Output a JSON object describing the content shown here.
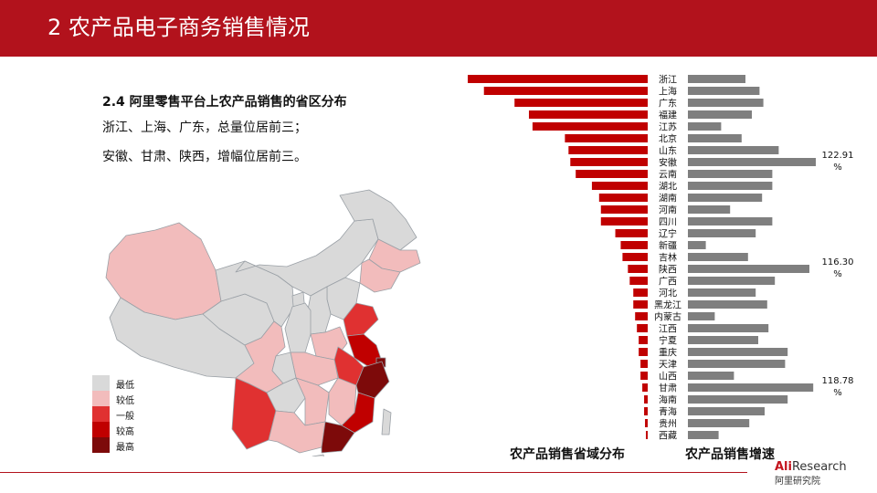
{
  "header": {
    "title": "2 农产品电子商务销售情况"
  },
  "text": {
    "subtitle": "2.4 阿里零售平台上农产品销售的省区分布",
    "line1": "浙江、上海、广东，总量位居前三；",
    "line2": "安徽、甘肃、陕西，增幅位居前三。"
  },
  "legend": [
    {
      "label": "最低",
      "color": "#d9d9d9"
    },
    {
      "label": "较低",
      "color": "#f2bcbc"
    },
    {
      "label": "一般",
      "color": "#e03131"
    },
    {
      "label": "较高",
      "color": "#c00000"
    },
    {
      "label": "最高",
      "color": "#7d0a0a"
    }
  ],
  "map": {
    "regions": [
      {
        "name": "新疆",
        "level": 1
      },
      {
        "name": "西藏",
        "level": 0
      },
      {
        "name": "青海",
        "level": 0
      },
      {
        "name": "甘肃",
        "level": 0
      },
      {
        "name": "内蒙古",
        "level": 0
      },
      {
        "name": "黑龙江",
        "level": 0
      },
      {
        "name": "吉林",
        "level": 1
      },
      {
        "name": "辽宁",
        "level": 1
      },
      {
        "name": "北京",
        "level": 2
      },
      {
        "name": "河北",
        "level": 0
      },
      {
        "name": "山西",
        "level": 0
      },
      {
        "name": "宁夏",
        "level": 0
      },
      {
        "name": "陕西",
        "level": 0
      },
      {
        "name": "河南",
        "level": 1
      },
      {
        "name": "山东",
        "level": 2
      },
      {
        "name": "江苏",
        "level": 3
      },
      {
        "name": "上海",
        "level": 4
      },
      {
        "name": "安徽",
        "level": 2
      },
      {
        "name": "湖北",
        "level": 1
      },
      {
        "name": "四川",
        "level": 1
      },
      {
        "name": "重庆",
        "level": 0
      },
      {
        "name": "贵州",
        "level": 0
      },
      {
        "name": "湖南",
        "level": 1
      },
      {
        "name": "江西",
        "level": 1
      },
      {
        "name": "浙江",
        "level": 4
      },
      {
        "name": "福建",
        "level": 3
      },
      {
        "name": "云南",
        "level": 2
      },
      {
        "name": "广西",
        "level": 1
      },
      {
        "name": "广东",
        "level": 4
      },
      {
        "name": "海南",
        "level": 0
      },
      {
        "name": "台湾",
        "level": 0
      }
    ]
  },
  "chart_data": {
    "type": "bar",
    "categories": [
      "浙江",
      "上海",
      "广东",
      "福建",
      "江苏",
      "北京",
      "山东",
      "安徽",
      "云南",
      "湖北",
      "湖南",
      "河南",
      "四川",
      "辽宁",
      "新疆",
      "吉林",
      "陕西",
      "广西",
      "河北",
      "黑龙江",
      "内蒙古",
      "江西",
      "宁夏",
      "重庆",
      "天津",
      "山西",
      "甘肃",
      "海南",
      "青海",
      "贵州",
      "西藏"
    ],
    "series": [
      {
        "name": "农产品销售省域分布",
        "color": "#c00000",
        "direction": "left",
        "values": [
          100,
          91,
          74,
          66,
          64,
          46,
          44,
          43,
          40,
          31,
          27,
          26,
          26,
          18,
          15,
          14,
          11,
          10,
          8,
          8,
          7,
          6,
          5,
          5,
          4,
          4,
          3,
          2,
          2,
          1.5,
          1
        ]
      },
      {
        "name": "农产品销售增速",
        "color": "#7f7f7f",
        "direction": "right",
        "values": [
          45,
          56,
          59,
          50,
          26,
          42,
          71,
          100,
          66,
          66,
          58,
          33,
          66,
          53,
          14,
          47,
          95,
          68,
          53,
          62,
          21,
          63,
          55,
          78,
          76,
          36,
          98,
          78,
          60,
          48,
          24
        ]
      }
    ],
    "annotations": [
      {
        "category": "安徽",
        "text": "122.91\n%"
      },
      {
        "category": "陕西",
        "text": "116.30\n%"
      },
      {
        "category": "甘肃",
        "text": "118.78\n%"
      }
    ],
    "xlabel_left": "农产品销售省域分布",
    "xlabel_right": "农产品销售增速"
  },
  "logo": {
    "brand": "AliResearch",
    "sub": "阿里研究院"
  }
}
